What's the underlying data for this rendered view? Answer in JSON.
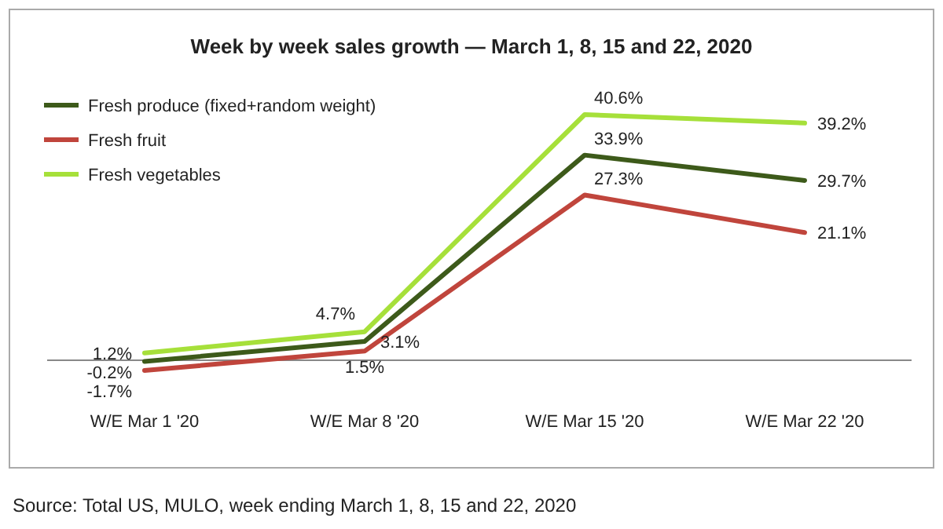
{
  "chart_data": {
    "type": "line",
    "title": "Week by week sales growth — March 1, 8, 15 and 22, 2020",
    "categories": [
      "W/E Mar 1 '20",
      "W/E Mar 8 '20",
      "W/E Mar 15 '20",
      "W/E Mar 22 '20"
    ],
    "series": [
      {
        "name": "Fresh produce (fixed+random weight)",
        "color": "#3d5a1a",
        "values": [
          -0.2,
          3.1,
          33.9,
          29.7
        ],
        "value_labels": [
          "-0.2%",
          "3.1%",
          "33.9%",
          "29.7%"
        ]
      },
      {
        "name": "Fresh fruit",
        "color": "#c0453c",
        "values": [
          -1.7,
          1.5,
          27.3,
          21.1
        ],
        "value_labels": [
          "-1.7%",
          "1.5%",
          "27.3%",
          "21.1%"
        ]
      },
      {
        "name": "Fresh vegetables",
        "color": "#a6e03a",
        "values": [
          1.2,
          4.7,
          40.6,
          39.2
        ],
        "value_labels": [
          "1.2%",
          "4.7%",
          "40.6%",
          "39.2%"
        ]
      }
    ],
    "legend": "top left",
    "grid": false,
    "marker": "none",
    "line_style": "solid",
    "annotations": [
      "Source: Total US, MULO, week ending March 1, 8, 15 and 22, 2020"
    ]
  }
}
